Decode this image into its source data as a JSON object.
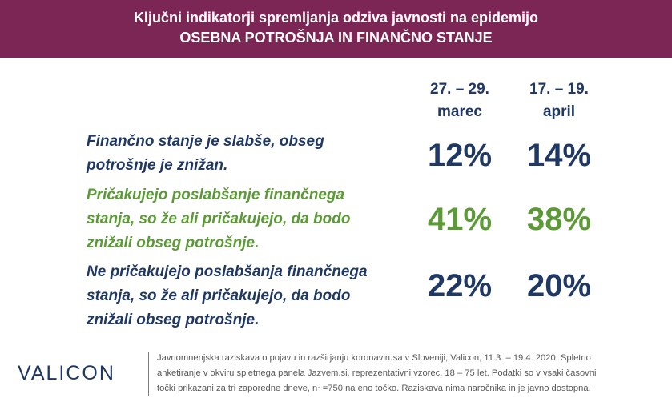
{
  "header": {
    "title": "Ključni indikatorji spremljanja odziva javnosti na epidemijo",
    "subtitle": "OSEBNA POTROŠNJA IN FINANČNO STANJE"
  },
  "columns": [
    {
      "line1": "27. – 29.",
      "line2": "marec"
    },
    {
      "line1": "17. – 19.",
      "line2": "april"
    }
  ],
  "rows": [
    {
      "label_line1": "Finančno stanje je slabše, obseg",
      "label_line2": "potrošnje je znižan.",
      "label_line3": "",
      "values": [
        "12%",
        "14%"
      ],
      "color": "#1f3864"
    },
    {
      "label_line1": "Pričakujejo poslabšanje finančnega",
      "label_line2": "stanja, so že ali pričakujejo, da bodo",
      "label_line3": "znižali obseg potrošnje.",
      "values": [
        "41%",
        "38%"
      ],
      "color": "#5b9a36"
    },
    {
      "label_line1": "Ne pričakujejo poslabšanja finančnega",
      "label_line2": "stanja, so že ali pričakujejo, da bodo",
      "label_line3": "znižali obseg potrošnje.",
      "values": [
        "22%",
        "20%"
      ],
      "color": "#1f3864"
    }
  ],
  "footer": {
    "logo": "VALICON",
    "note_line1": "Javnomnenjska  raziskava o pojavu  in razširjanju koronavirusa  v Sloveniji,  Valicon,  11.3. – 19.4. 2020.  Spletno",
    "note_line2": "anketiranje v okviru spletnega panela Jazvem.si, reprezentativni vzorec, 18 – 75 let. Podatki so v vsaki časovni",
    "note_line3": "točki prikazani za tri zaporedne dneve,  n~=750 na eno točko.  Raziskava nima naročnika in je javno dostopna."
  }
}
